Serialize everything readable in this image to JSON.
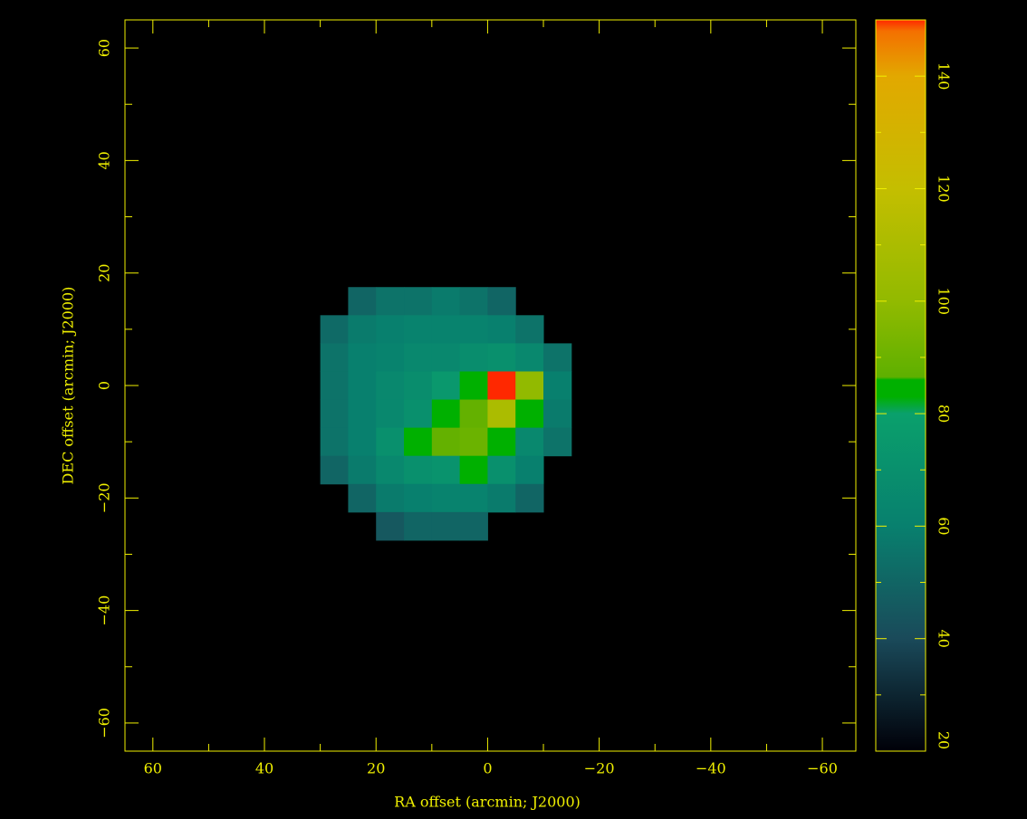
{
  "chart_data": {
    "type": "heatmap",
    "x_label": "RA offset (arcmin; J2000)",
    "y_label": "DEC offset (arcmin; J2000)",
    "x": [
      27.5,
      22.5,
      17.5,
      12.5,
      7.5,
      2.5,
      -2.5,
      -7.5,
      -12.5
    ],
    "y": [
      15,
      10,
      5,
      0,
      -5,
      -10,
      -15,
      -20,
      -25
    ],
    "cell_size": 5,
    "values": [
      [
        null,
        50,
        55,
        55,
        58,
        55,
        50,
        null,
        null
      ],
      [
        52,
        58,
        60,
        62,
        62,
        62,
        60,
        55,
        null
      ],
      [
        55,
        60,
        62,
        65,
        65,
        68,
        70,
        65,
        55
      ],
      [
        55,
        60,
        65,
        68,
        75,
        85,
        150,
        100,
        60
      ],
      [
        55,
        60,
        65,
        70,
        85,
        88,
        110,
        85,
        58
      ],
      [
        55,
        60,
        70,
        85,
        88,
        90,
        85,
        65,
        55
      ],
      [
        50,
        58,
        65,
        70,
        72,
        85,
        70,
        60,
        null
      ],
      [
        null,
        50,
        58,
        60,
        62,
        62,
        58,
        50,
        null
      ],
      [
        null,
        null,
        45,
        50,
        50,
        50,
        null,
        null,
        null
      ]
    ],
    "xlim": [
      65,
      -66
    ],
    "ylim": [
      -65,
      65
    ],
    "xticks": [
      60,
      40,
      20,
      0,
      {
        "value": -20,
        "label": "−20"
      },
      {
        "value": -40,
        "label": "−40"
      },
      {
        "value": -60,
        "label": "−60"
      }
    ],
    "yticks": [
      {
        "value": -60,
        "label": "−60"
      },
      {
        "value": -40,
        "label": "−40"
      },
      {
        "value": -20,
        "label": "−20"
      },
      0,
      20,
      40,
      60
    ],
    "xminorticks": [
      50,
      30,
      10,
      -10,
      -30,
      -50
    ],
    "yminorticks": [
      -50,
      -30,
      -10,
      10,
      30,
      50
    ],
    "zlim": [
      20,
      150
    ],
    "zticks": [
      20,
      40,
      60,
      80,
      100,
      120,
      140
    ],
    "zminorticks": [
      30,
      50,
      70,
      90,
      110,
      130
    ],
    "colormap": [
      [
        20,
        "#000008"
      ],
      [
        40,
        "#1a4a5a"
      ],
      [
        60,
        "#08806e"
      ],
      [
        80,
        "#0aa06c"
      ],
      [
        83,
        "#00b000"
      ],
      [
        86,
        "#00b000"
      ],
      [
        86.5,
        "#5eb000"
      ],
      [
        100,
        "#92ba00"
      ],
      [
        120,
        "#c4be00"
      ],
      [
        140,
        "#e2a800"
      ],
      [
        148,
        "#f47000"
      ],
      [
        150,
        "#ff2800"
      ]
    ]
  }
}
